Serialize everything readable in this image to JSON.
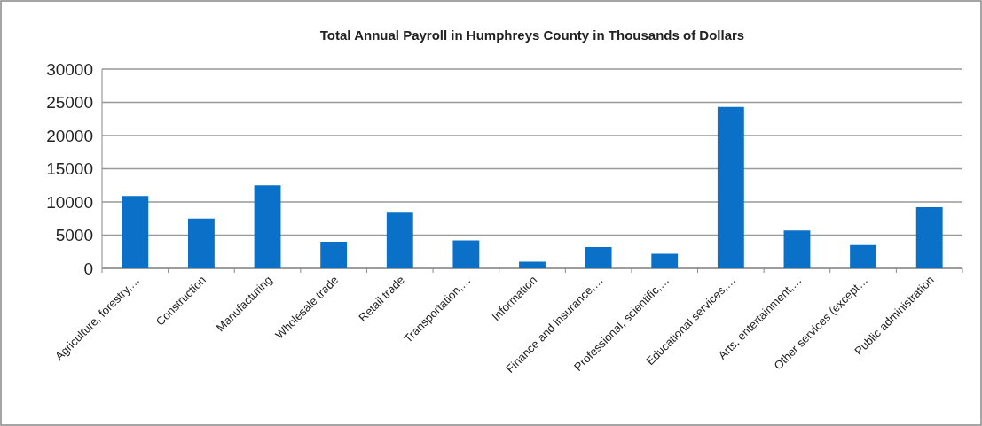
{
  "chart_data": {
    "type": "bar",
    "title": "Total Annual Payroll in Humphreys County in Thousands of Dollars",
    "categories": [
      "Agriculture, forestry,…",
      "Construction",
      "Manufacturing",
      "Wholesale trade",
      "Retail trade",
      "Transportation,…",
      "Information",
      "Finance and insurance,…",
      "Professional, scientific,…",
      "Educational services,…",
      "Arts, entertainment,…",
      "Other services (except…",
      "Public administration"
    ],
    "values": [
      10900,
      7500,
      12500,
      4000,
      8500,
      4200,
      1000,
      3200,
      2200,
      24300,
      5700,
      3500,
      9200
    ],
    "color": "#0a70c8",
    "ylim": [
      0,
      30000
    ],
    "yticks": [
      0,
      5000,
      10000,
      15000,
      20000,
      25000,
      30000
    ],
    "grid": "y"
  }
}
